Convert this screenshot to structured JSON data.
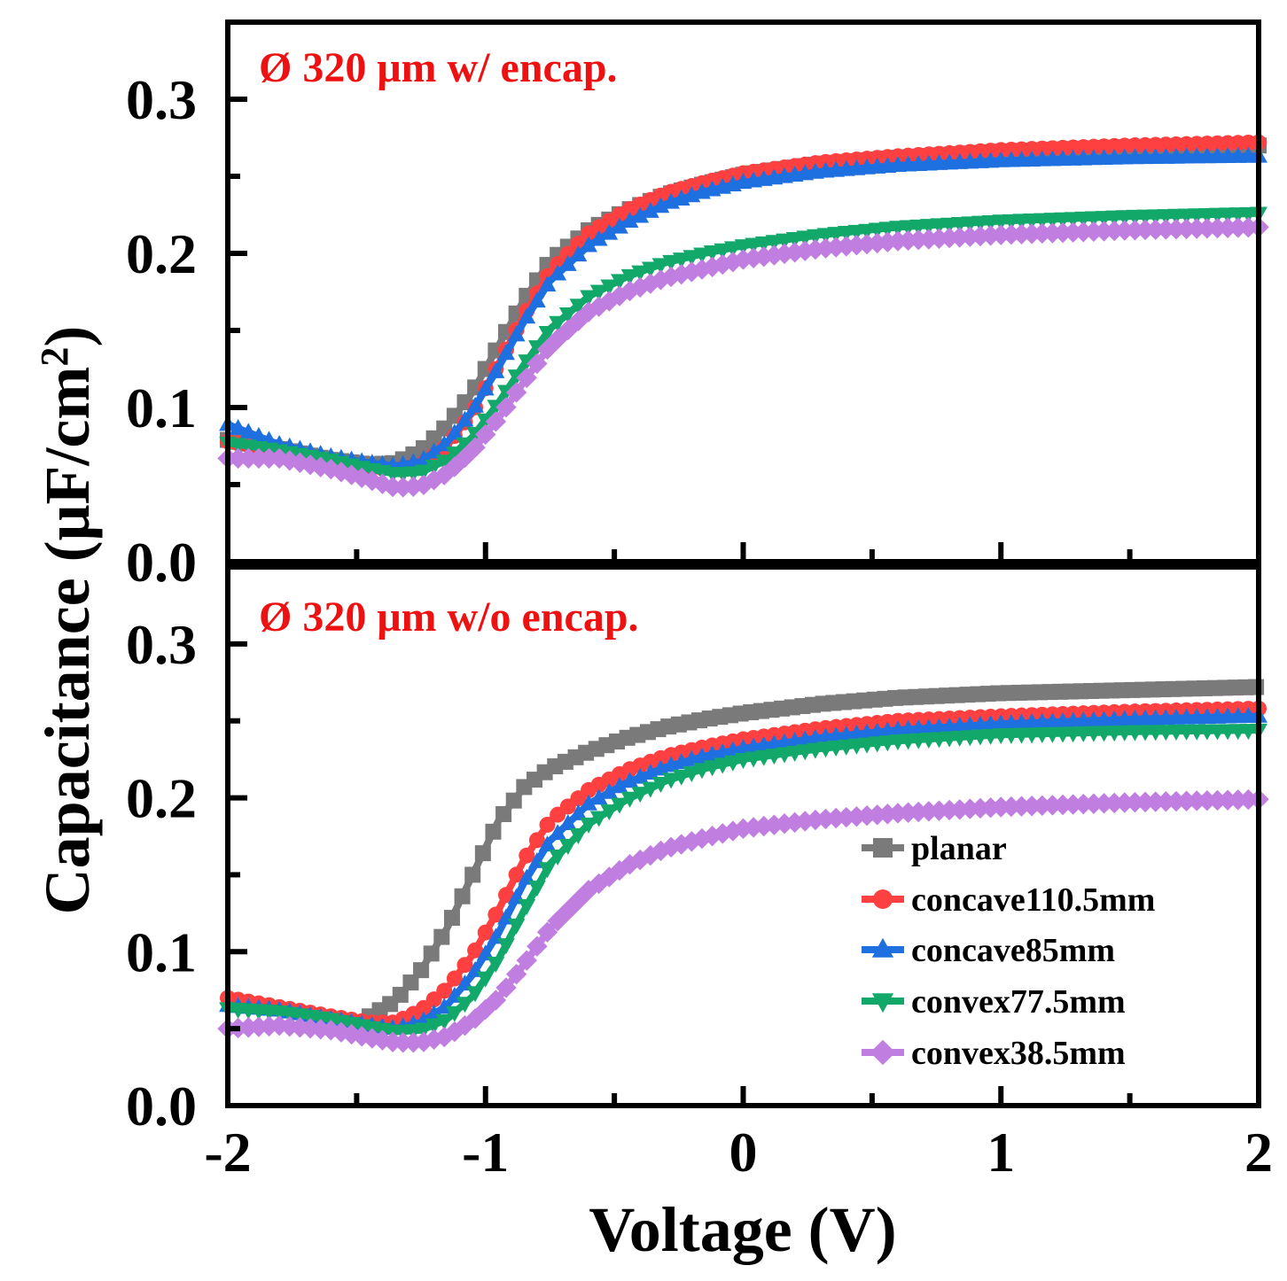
{
  "chart_data": {
    "type": "line",
    "xlabel": "Voltage (V)",
    "ylabel_main": "Capacitance (μF/cm",
    "ylabel_sup": "2",
    "ylabel_close": ")",
    "xlim": [
      -2,
      2
    ],
    "ylim": [
      0,
      0.35
    ],
    "x_ticks": [
      "-2",
      "-1",
      "0",
      "1",
      "2"
    ],
    "y_ticks": [
      "0.0",
      "0.1",
      "0.2",
      "0.3"
    ],
    "legend": [
      "planar",
      "concave110.5mm",
      "concave85mm",
      "convex77.5mm",
      "convex38.5mm"
    ],
    "legend_position": "bottom-right of lower panel",
    "series_styles": [
      {
        "name": "planar",
        "color": "#7a7a7a",
        "marker": "square"
      },
      {
        "name": "concave110.5mm",
        "color": "#ff4040",
        "marker": "circle"
      },
      {
        "name": "concave85mm",
        "color": "#1e6fe0",
        "marker": "triangle-up"
      },
      {
        "name": "convex77.5mm",
        "color": "#12a86a",
        "marker": "triangle-down"
      },
      {
        "name": "convex38.5mm",
        "color": "#c07ee0",
        "marker": "diamond"
      }
    ],
    "panels": [
      {
        "title": "Ø 320 μm w/ encap.",
        "title_color": "#ee1111",
        "series": [
          {
            "name": "planar",
            "points": [
              [
                -2.0,
                0.079
              ],
              [
                -1.8,
                0.073
              ],
              [
                -1.6,
                0.066
              ],
              [
                -1.45,
                0.063
              ],
              [
                -1.35,
                0.064
              ],
              [
                -1.25,
                0.072
              ],
              [
                -1.15,
                0.088
              ],
              [
                -1.05,
                0.11
              ],
              [
                -0.95,
                0.14
              ],
              [
                -0.85,
                0.17
              ],
              [
                -0.75,
                0.195
              ],
              [
                -0.6,
                0.215
              ],
              [
                -0.45,
                0.228
              ],
              [
                -0.3,
                0.238
              ],
              [
                -0.15,
                0.245
              ],
              [
                0.0,
                0.251
              ],
              [
                0.3,
                0.258
              ],
              [
                0.6,
                0.262
              ],
              [
                1.0,
                0.266
              ],
              [
                1.5,
                0.269
              ],
              [
                2.0,
                0.27
              ]
            ]
          },
          {
            "name": "concave110.5mm",
            "points": [
              [
                -2.0,
                0.078
              ],
              [
                -1.8,
                0.072
              ],
              [
                -1.6,
                0.065
              ],
              [
                -1.45,
                0.061
              ],
              [
                -1.35,
                0.06
              ],
              [
                -1.25,
                0.063
              ],
              [
                -1.15,
                0.075
              ],
              [
                -1.05,
                0.097
              ],
              [
                -0.95,
                0.128
              ],
              [
                -0.85,
                0.16
              ],
              [
                -0.75,
                0.188
              ],
              [
                -0.6,
                0.213
              ],
              [
                -0.45,
                0.228
              ],
              [
                -0.3,
                0.239
              ],
              [
                -0.15,
                0.246
              ],
              [
                0.0,
                0.252
              ],
              [
                0.3,
                0.259
              ],
              [
                0.6,
                0.263
              ],
              [
                1.0,
                0.267
              ],
              [
                1.5,
                0.27
              ],
              [
                2.0,
                0.272
              ]
            ]
          },
          {
            "name": "concave85mm",
            "points": [
              [
                -2.0,
                0.089
              ],
              [
                -1.8,
                0.076
              ],
              [
                -1.6,
                0.068
              ],
              [
                -1.45,
                0.064
              ],
              [
                -1.35,
                0.062
              ],
              [
                -1.25,
                0.065
              ],
              [
                -1.15,
                0.077
              ],
              [
                -1.05,
                0.098
              ],
              [
                -0.95,
                0.126
              ],
              [
                -0.85,
                0.156
              ],
              [
                -0.75,
                0.182
              ],
              [
                -0.6,
                0.205
              ],
              [
                -0.45,
                0.22
              ],
              [
                -0.3,
                0.232
              ],
              [
                -0.15,
                0.24
              ],
              [
                0.0,
                0.246
              ],
              [
                0.3,
                0.253
              ],
              [
                0.6,
                0.257
              ],
              [
                1.0,
                0.26
              ],
              [
                1.5,
                0.262
              ],
              [
                2.0,
                0.263
              ]
            ]
          },
          {
            "name": "convex77.5mm",
            "points": [
              [
                -2.0,
                0.077
              ],
              [
                -1.8,
                0.072
              ],
              [
                -1.6,
                0.066
              ],
              [
                -1.45,
                0.06
              ],
              [
                -1.35,
                0.057
              ],
              [
                -1.25,
                0.058
              ],
              [
                -1.15,
                0.066
              ],
              [
                -1.05,
                0.081
              ],
              [
                -0.95,
                0.103
              ],
              [
                -0.85,
                0.128
              ],
              [
                -0.75,
                0.151
              ],
              [
                -0.6,
                0.172
              ],
              [
                -0.45,
                0.185
              ],
              [
                -0.3,
                0.194
              ],
              [
                -0.15,
                0.2
              ],
              [
                0.0,
                0.205
              ],
              [
                0.3,
                0.212
              ],
              [
                0.6,
                0.217
              ],
              [
                1.0,
                0.221
              ],
              [
                1.5,
                0.224
              ],
              [
                2.0,
                0.226
              ]
            ]
          },
          {
            "name": "convex38.5mm",
            "points": [
              [
                -2.0,
                0.067
              ],
              [
                -1.8,
                0.067
              ],
              [
                -1.6,
                0.06
              ],
              [
                -1.45,
                0.053
              ],
              [
                -1.35,
                0.048
              ],
              [
                -1.25,
                0.049
              ],
              [
                -1.15,
                0.057
              ],
              [
                -1.05,
                0.072
              ],
              [
                -0.95,
                0.093
              ],
              [
                -0.85,
                0.117
              ],
              [
                -0.75,
                0.14
              ],
              [
                -0.6,
                0.162
              ],
              [
                -0.45,
                0.175
              ],
              [
                -0.3,
                0.184
              ],
              [
                -0.15,
                0.19
              ],
              [
                0.0,
                0.196
              ],
              [
                0.3,
                0.203
              ],
              [
                0.6,
                0.208
              ],
              [
                1.0,
                0.212
              ],
              [
                1.5,
                0.215
              ],
              [
                2.0,
                0.217
              ]
            ]
          }
        ]
      },
      {
        "title": "Ø 320 μm w/o encap.",
        "title_color": "#ee1111",
        "series": [
          {
            "name": "planar",
            "points": [
              [
                -1.45,
                0.058
              ],
              [
                -1.35,
                0.068
              ],
              [
                -1.25,
                0.088
              ],
              [
                -1.15,
                0.115
              ],
              [
                -1.05,
                0.15
              ],
              [
                -0.95,
                0.185
              ],
              [
                -0.85,
                0.207
              ],
              [
                -0.75,
                0.219
              ],
              [
                -0.6,
                0.23
              ],
              [
                -0.45,
                0.239
              ],
              [
                -0.3,
                0.246
              ],
              [
                -0.15,
                0.251
              ],
              [
                0.0,
                0.255
              ],
              [
                0.3,
                0.261
              ],
              [
                0.6,
                0.265
              ],
              [
                1.0,
                0.268
              ],
              [
                1.5,
                0.27
              ],
              [
                2.0,
                0.272
              ]
            ]
          },
          {
            "name": "concave110.5mm",
            "points": [
              [
                -2.0,
                0.07
              ],
              [
                -1.8,
                0.064
              ],
              [
                -1.6,
                0.058
              ],
              [
                -1.45,
                0.054
              ],
              [
                -1.35,
                0.054
              ],
              [
                -1.25,
                0.062
              ],
              [
                -1.15,
                0.076
              ],
              [
                -1.05,
                0.098
              ],
              [
                -0.95,
                0.127
              ],
              [
                -0.85,
                0.16
              ],
              [
                -0.75,
                0.185
              ],
              [
                -0.6,
                0.205
              ],
              [
                -0.45,
                0.218
              ],
              [
                -0.3,
                0.227
              ],
              [
                -0.15,
                0.233
              ],
              [
                0.0,
                0.238
              ],
              [
                0.3,
                0.245
              ],
              [
                0.6,
                0.25
              ],
              [
                1.0,
                0.253
              ],
              [
                1.5,
                0.256
              ],
              [
                2.0,
                0.258
              ]
            ]
          },
          {
            "name": "concave85mm",
            "points": [
              [
                -2.0,
                0.065
              ],
              [
                -1.8,
                0.062
              ],
              [
                -1.6,
                0.056
              ],
              [
                -1.45,
                0.052
              ],
              [
                -1.35,
                0.05
              ],
              [
                -1.25,
                0.054
              ],
              [
                -1.15,
                0.065
              ],
              [
                -1.05,
                0.085
              ],
              [
                -0.95,
                0.112
              ],
              [
                -0.85,
                0.145
              ],
              [
                -0.75,
                0.172
              ],
              [
                -0.6,
                0.196
              ],
              [
                -0.45,
                0.21
              ],
              [
                -0.3,
                0.22
              ],
              [
                -0.15,
                0.227
              ],
              [
                0.0,
                0.232
              ],
              [
                0.3,
                0.239
              ],
              [
                0.6,
                0.244
              ],
              [
                1.0,
                0.248
              ],
              [
                1.5,
                0.251
              ],
              [
                2.0,
                0.253
              ]
            ]
          },
          {
            "name": "convex77.5mm",
            "points": [
              [
                -2.0,
                0.063
              ],
              [
                -1.8,
                0.061
              ],
              [
                -1.6,
                0.056
              ],
              [
                -1.45,
                0.051
              ],
              [
                -1.35,
                0.048
              ],
              [
                -1.25,
                0.049
              ],
              [
                -1.15,
                0.056
              ],
              [
                -1.05,
                0.071
              ],
              [
                -0.95,
                0.095
              ],
              [
                -0.85,
                0.127
              ],
              [
                -0.75,
                0.157
              ],
              [
                -0.6,
                0.183
              ],
              [
                -0.45,
                0.199
              ],
              [
                -0.3,
                0.211
              ],
              [
                -0.15,
                0.219
              ],
              [
                0.0,
                0.225
              ],
              [
                0.3,
                0.232
              ],
              [
                0.6,
                0.237
              ],
              [
                1.0,
                0.241
              ],
              [
                1.5,
                0.243
              ],
              [
                2.0,
                0.244
              ]
            ]
          },
          {
            "name": "convex38.5mm",
            "points": [
              [
                -2.0,
                0.05
              ],
              [
                -1.8,
                0.052
              ],
              [
                -1.6,
                0.049
              ],
              [
                -1.45,
                0.044
              ],
              [
                -1.35,
                0.041
              ],
              [
                -1.25,
                0.041
              ],
              [
                -1.15,
                0.045
              ],
              [
                -1.05,
                0.055
              ],
              [
                -0.95,
                0.07
              ],
              [
                -0.85,
                0.092
              ],
              [
                -0.75,
                0.115
              ],
              [
                -0.6,
                0.14
              ],
              [
                -0.45,
                0.156
              ],
              [
                -0.3,
                0.167
              ],
              [
                -0.15,
                0.174
              ],
              [
                0.0,
                0.18
              ],
              [
                0.3,
                0.186
              ],
              [
                0.6,
                0.19
              ],
              [
                1.0,
                0.194
              ],
              [
                1.5,
                0.197
              ],
              [
                2.0,
                0.199
              ]
            ]
          }
        ]
      }
    ]
  }
}
